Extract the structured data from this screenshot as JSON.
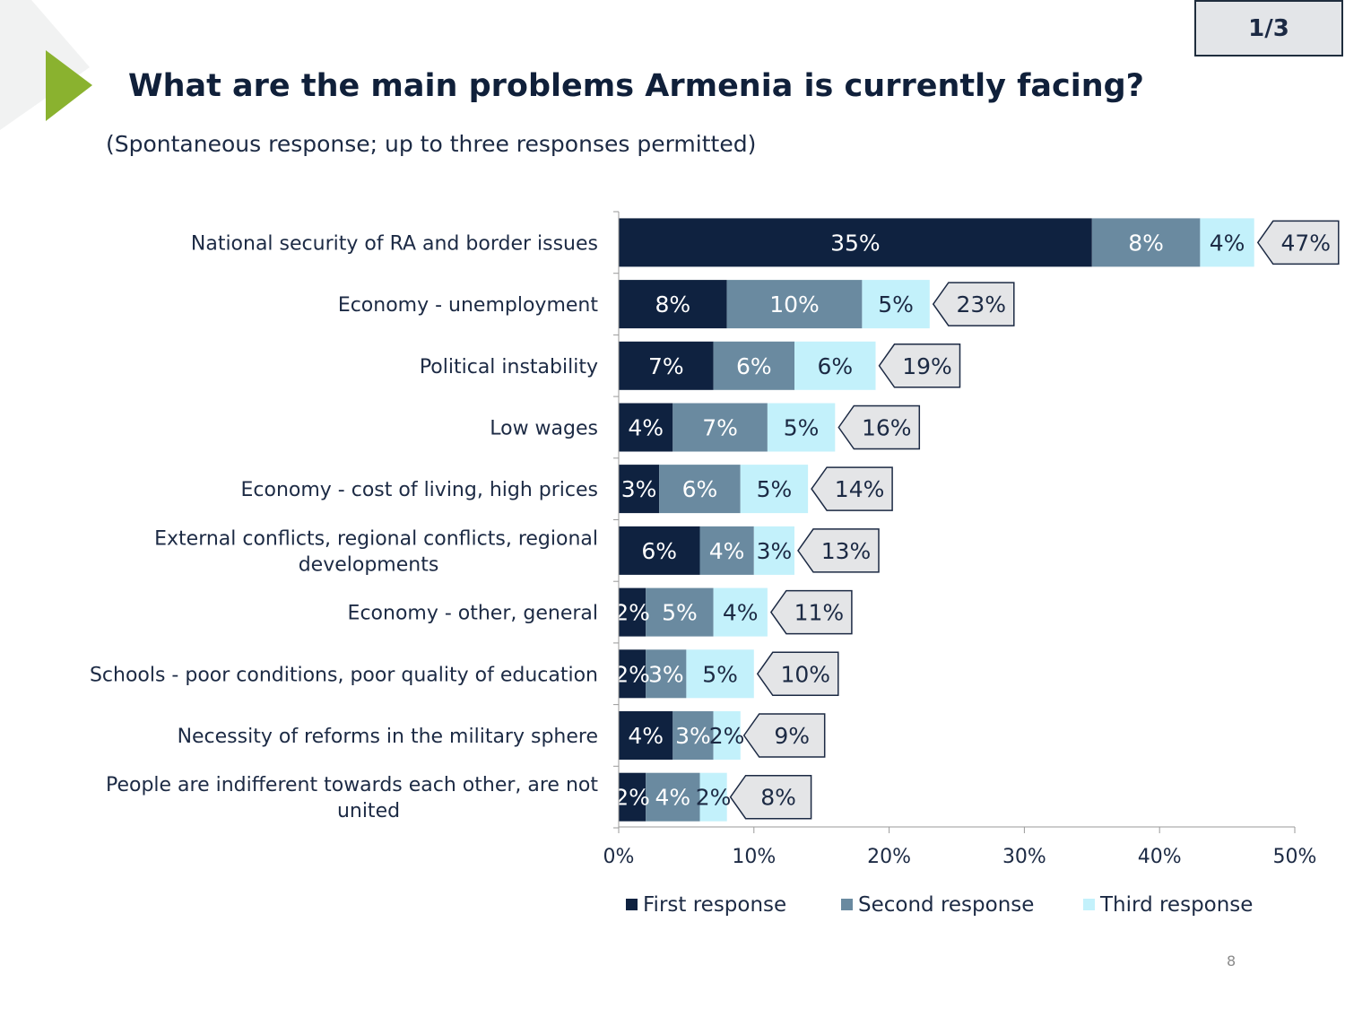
{
  "page": {
    "badge": "1/3",
    "slide_number": "8"
  },
  "header": {
    "title": "What are the main problems Armenia is currently facing?",
    "subtitle": "(Spontaneous response; up to three responses permitted)"
  },
  "colors": {
    "first": "#0f2240",
    "second": "#6a8aa0",
    "third": "#c3f1fb",
    "callout_fill": "#e4e5e7",
    "accent_green": "#8ab22f"
  },
  "chart_data": {
    "type": "bar",
    "orientation": "horizontal",
    "stacked": true,
    "categories": [
      [
        "National security of RA and border issues"
      ],
      [
        "Economy - unemployment"
      ],
      [
        "Political instability"
      ],
      [
        "Low wages"
      ],
      [
        "Economy - cost of living, high prices"
      ],
      [
        "External conflicts, regional conflicts, regional",
        "developments"
      ],
      [
        "Economy - other, general"
      ],
      [
        "Schools - poor conditions, poor quality of education"
      ],
      [
        "Necessity of reforms in the military sphere"
      ],
      [
        "People are indifferent towards each other, are not",
        "united"
      ]
    ],
    "series": [
      {
        "name": "First response",
        "values": [
          35,
          8,
          7,
          4,
          3,
          6,
          2,
          2,
          4,
          2
        ],
        "labels": [
          "35%",
          "8%",
          "7%",
          "4%",
          "3%",
          "6%",
          "2%",
          "2%",
          "4%",
          "2%"
        ]
      },
      {
        "name": "Second response",
        "values": [
          8,
          10,
          6,
          7,
          6,
          4,
          5,
          3,
          3,
          4
        ],
        "labels": [
          "8%",
          "10%",
          "6%",
          "7%",
          "6%",
          "4%",
          "5%",
          "3%",
          "3%",
          "4%"
        ]
      },
      {
        "name": "Third response",
        "values": [
          4,
          5,
          6,
          5,
          5,
          3,
          4,
          5,
          2,
          2
        ],
        "labels": [
          "4%",
          "5%",
          "6%",
          "5%",
          "5%",
          "3%",
          "4%",
          "5%",
          "2%",
          "2%"
        ]
      }
    ],
    "totals": [
      47,
      23,
      19,
      16,
      14,
      13,
      11,
      10,
      9,
      8
    ],
    "total_labels": [
      "47%",
      "23%",
      "19%",
      "16%",
      "14%",
      "13%",
      "11%",
      "10%",
      "9%",
      "8%"
    ],
    "xlim": [
      0,
      50
    ],
    "xticks": [
      0,
      10,
      20,
      30,
      40,
      50
    ],
    "xtick_labels": [
      "0%",
      "10%",
      "20%",
      "30%",
      "40%",
      "50%"
    ],
    "legend_position": "bottom"
  }
}
